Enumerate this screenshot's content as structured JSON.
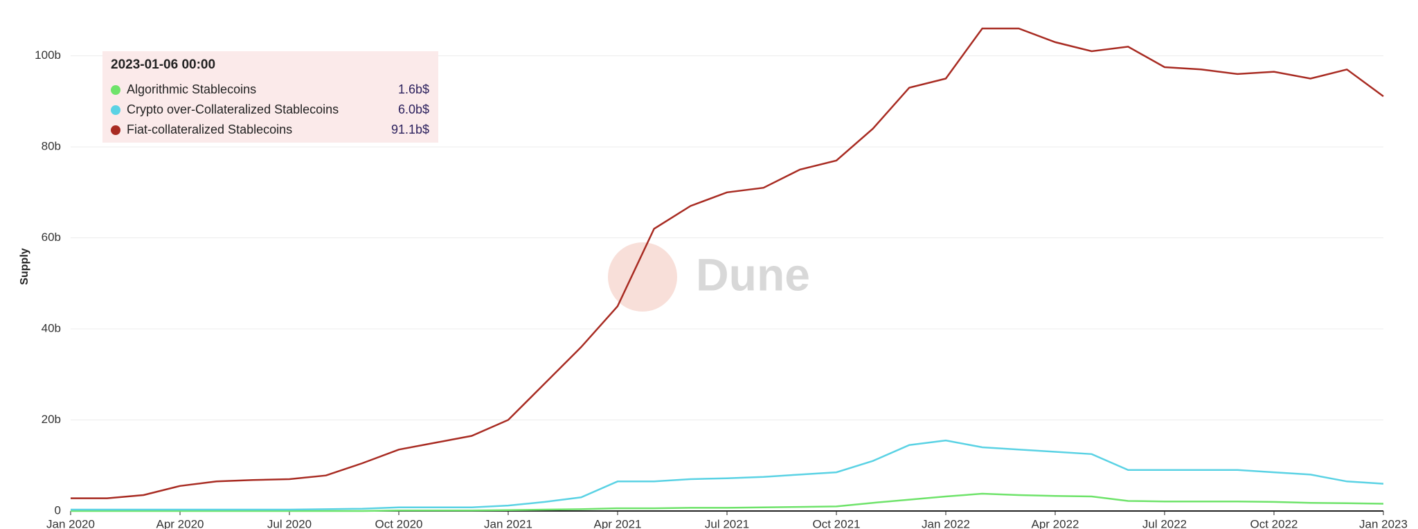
{
  "chart_data": {
    "type": "line",
    "y_label": "Supply",
    "watermark": "Dune",
    "x": [
      "2020-01",
      "2020-02",
      "2020-03",
      "2020-04",
      "2020-05",
      "2020-06",
      "2020-07",
      "2020-08",
      "2020-09",
      "2020-10",
      "2020-11",
      "2020-12",
      "2021-01",
      "2021-02",
      "2021-03",
      "2021-04",
      "2021-05",
      "2021-06",
      "2021-07",
      "2021-08",
      "2021-09",
      "2021-10",
      "2021-11",
      "2021-12",
      "2022-01",
      "2022-02",
      "2022-03",
      "2022-04",
      "2022-05",
      "2022-06",
      "2022-07",
      "2022-08",
      "2022-09",
      "2022-10",
      "2022-11",
      "2022-12",
      "2023-01"
    ],
    "xlim": [
      "2020-01",
      "2023-01"
    ],
    "xticks": [
      {
        "value": "2020-01",
        "label": "Jan 2020"
      },
      {
        "value": "2020-04",
        "label": "Apr 2020"
      },
      {
        "value": "2020-07",
        "label": "Jul 2020"
      },
      {
        "value": "2020-10",
        "label": "Oct 2020"
      },
      {
        "value": "2021-01",
        "label": "Jan 2021"
      },
      {
        "value": "2021-04",
        "label": "Apr 2021"
      },
      {
        "value": "2021-07",
        "label": "Jul 2021"
      },
      {
        "value": "2021-10",
        "label": "Oct 2021"
      },
      {
        "value": "2022-01",
        "label": "Jan 2022"
      },
      {
        "value": "2022-04",
        "label": "Apr 2022"
      },
      {
        "value": "2022-07",
        "label": "Jul 2022"
      },
      {
        "value": "2022-10",
        "label": "Oct 2022"
      },
      {
        "value": "2023-01",
        "label": "Jan 2023"
      }
    ],
    "ylim": [
      0,
      108
    ],
    "yticks": [
      0,
      {
        "value": 20,
        "label": "20b"
      },
      {
        "value": 40,
        "label": "40b"
      },
      {
        "value": 60,
        "label": "60b"
      },
      {
        "value": 80,
        "label": "80b"
      },
      {
        "value": 100,
        "label": "100b"
      }
    ],
    "grid": true,
    "series": [
      {
        "name": "Algorithmic Stablecoins",
        "color": "#6ee36a",
        "values": [
          0,
          0,
          0,
          0,
          0,
          0,
          0,
          0,
          0,
          0.1,
          0.1,
          0.1,
          0.2,
          0.3,
          0.4,
          0.6,
          0.6,
          0.7,
          0.7,
          0.8,
          0.9,
          1,
          1.8,
          2.5,
          3.2,
          3.8,
          3.5,
          3.3,
          3.2,
          2.2,
          2.1,
          2.1,
          2.1,
          2,
          1.8,
          1.7,
          1.6
        ]
      },
      {
        "name": "Crypto over-Collateralized Stablecoins",
        "color": "#5ad2e4",
        "values": [
          0.3,
          0.3,
          0.3,
          0.3,
          0.3,
          0.3,
          0.3,
          0.4,
          0.5,
          0.8,
          0.8,
          0.8,
          1.2,
          2,
          3,
          6.5,
          6.5,
          7,
          7.2,
          7.5,
          8,
          8.5,
          11,
          14.5,
          15.5,
          14,
          13.5,
          13,
          12.5,
          9,
          9,
          9,
          9,
          8.5,
          8,
          6.5,
          6.0
        ]
      },
      {
        "name": "Fiat-collateralized Stablecoins",
        "color": "#a82b22",
        "values": [
          2.8,
          2.8,
          3.5,
          5.5,
          6.5,
          6.8,
          7,
          7.8,
          10.5,
          13.5,
          15,
          16.5,
          20,
          28,
          36,
          45,
          62,
          67,
          70,
          71,
          75,
          77,
          84,
          93,
          95,
          106,
          106,
          103,
          101,
          102,
          97.5,
          97,
          96,
          96.5,
          95,
          97,
          91.1
        ]
      }
    ],
    "tooltip": {
      "title": "2023-01-06 00:00",
      "labels": [
        "1.6b$",
        "6.0b$",
        "91.1b$"
      ]
    }
  }
}
